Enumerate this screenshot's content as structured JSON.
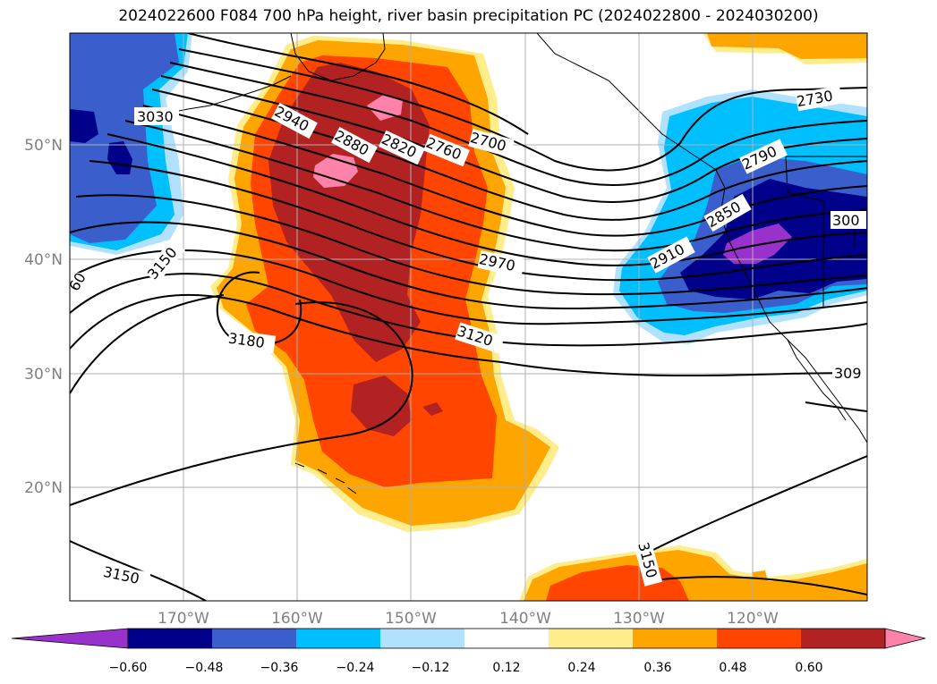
{
  "title": "2024022600 F084 700 hPa height, river basin precipitation PC (2024022800 - 2024030200)",
  "lat_labels": [
    "50°N",
    "40°N",
    "30°N",
    "20°N"
  ],
  "lon_labels": [
    "170°W",
    "160°W",
    "150°W",
    "140°W",
    "130°W",
    "120°W"
  ],
  "contour_labels": [
    "3030",
    "2940",
    "2880",
    "2820",
    "2760",
    "2700",
    "3150",
    "2970",
    "3180",
    "3120",
    "2730",
    "2790",
    "2850",
    "2910",
    "300",
    "309",
    "3150",
    "3150",
    "60"
  ],
  "colorbar": {
    "ticks": [
      "−0.60",
      "−0.48",
      "−0.36",
      "−0.24",
      "−0.12",
      "0.12",
      "0.24",
      "0.36",
      "0.48",
      "0.60"
    ],
    "colors": [
      "#9932cc",
      "#00008b",
      "#3a5fcd",
      "#00bfff",
      "#b0e2ff",
      "#ffffff",
      "#ffec8b",
      "#ffa500",
      "#ff4500",
      "#b22222",
      "#ff82ab"
    ]
  },
  "colors": {
    "dark_red": "#b22222",
    "red_orange": "#ff4500",
    "orange": "#ffa500",
    "light_yellow": "#ffec8b",
    "pink": "#ff82ab",
    "light_blue": "#b0e2ff",
    "sky_blue": "#00bfff",
    "royal_blue": "#3a5fcd",
    "navy": "#00008b",
    "purple": "#9932cc"
  }
}
